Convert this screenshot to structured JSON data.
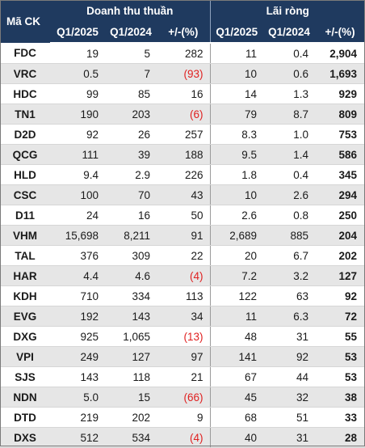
{
  "header": {
    "ticker": "Mã CK",
    "revenue_group": "Doanh thu thuần",
    "profit_group": "Lãi  ròng",
    "q1_2025": "Q1/2025",
    "q1_2024": "Q1/2024",
    "change": "+/-(%)"
  },
  "rows": [
    {
      "ticker": "FDC",
      "rev_2025": "19",
      "rev_2024": "5",
      "rev_chg": "282",
      "rev_neg": false,
      "np_2025": "11",
      "np_2024": "0.4",
      "np_chg": "2,904"
    },
    {
      "ticker": "VRC",
      "rev_2025": "0.5",
      "rev_2024": "7",
      "rev_chg": "(93)",
      "rev_neg": true,
      "np_2025": "10",
      "np_2024": "0.6",
      "np_chg": "1,693"
    },
    {
      "ticker": "HDC",
      "rev_2025": "99",
      "rev_2024": "85",
      "rev_chg": "16",
      "rev_neg": false,
      "np_2025": "14",
      "np_2024": "1.3",
      "np_chg": "929"
    },
    {
      "ticker": "TN1",
      "rev_2025": "190",
      "rev_2024": "203",
      "rev_chg": "(6)",
      "rev_neg": true,
      "np_2025": "79",
      "np_2024": "8.7",
      "np_chg": "809"
    },
    {
      "ticker": "D2D",
      "rev_2025": "92",
      "rev_2024": "26",
      "rev_chg": "257",
      "rev_neg": false,
      "np_2025": "8.3",
      "np_2024": "1.0",
      "np_chg": "753"
    },
    {
      "ticker": "QCG",
      "rev_2025": "111",
      "rev_2024": "39",
      "rev_chg": "188",
      "rev_neg": false,
      "np_2025": "9.5",
      "np_2024": "1.4",
      "np_chg": "586"
    },
    {
      "ticker": "HLD",
      "rev_2025": "9.4",
      "rev_2024": "2.9",
      "rev_chg": "226",
      "rev_neg": false,
      "np_2025": "1.8",
      "np_2024": "0.4",
      "np_chg": "345"
    },
    {
      "ticker": "CSC",
      "rev_2025": "100",
      "rev_2024": "70",
      "rev_chg": "43",
      "rev_neg": false,
      "np_2025": "10",
      "np_2024": "2.6",
      "np_chg": "294"
    },
    {
      "ticker": "D11",
      "rev_2025": "24",
      "rev_2024": "16",
      "rev_chg": "50",
      "rev_neg": false,
      "np_2025": "2.6",
      "np_2024": "0.8",
      "np_chg": "250"
    },
    {
      "ticker": "VHM",
      "rev_2025": "15,698",
      "rev_2024": "8,211",
      "rev_chg": "91",
      "rev_neg": false,
      "np_2025": "2,689",
      "np_2024": "885",
      "np_chg": "204"
    },
    {
      "ticker": "TAL",
      "rev_2025": "376",
      "rev_2024": "309",
      "rev_chg": "22",
      "rev_neg": false,
      "np_2025": "20",
      "np_2024": "6.7",
      "np_chg": "202"
    },
    {
      "ticker": "HAR",
      "rev_2025": "4.4",
      "rev_2024": "4.6",
      "rev_chg": "(4)",
      "rev_neg": true,
      "np_2025": "7.2",
      "np_2024": "3.2",
      "np_chg": "127"
    },
    {
      "ticker": "KDH",
      "rev_2025": "710",
      "rev_2024": "334",
      "rev_chg": "113",
      "rev_neg": false,
      "np_2025": "122",
      "np_2024": "63",
      "np_chg": "92"
    },
    {
      "ticker": "EVG",
      "rev_2025": "192",
      "rev_2024": "143",
      "rev_chg": "34",
      "rev_neg": false,
      "np_2025": "11",
      "np_2024": "6.3",
      "np_chg": "72"
    },
    {
      "ticker": "DXG",
      "rev_2025": "925",
      "rev_2024": "1,065",
      "rev_chg": "(13)",
      "rev_neg": true,
      "np_2025": "48",
      "np_2024": "31",
      "np_chg": "55"
    },
    {
      "ticker": "VPI",
      "rev_2025": "249",
      "rev_2024": "127",
      "rev_chg": "97",
      "rev_neg": false,
      "np_2025": "141",
      "np_2024": "92",
      "np_chg": "53"
    },
    {
      "ticker": "SJS",
      "rev_2025": "143",
      "rev_2024": "118",
      "rev_chg": "21",
      "rev_neg": false,
      "np_2025": "67",
      "np_2024": "44",
      "np_chg": "53"
    },
    {
      "ticker": "NDN",
      "rev_2025": "5.0",
      "rev_2024": "15",
      "rev_chg": "(66)",
      "rev_neg": true,
      "np_2025": "45",
      "np_2024": "32",
      "np_chg": "38"
    },
    {
      "ticker": "DTD",
      "rev_2025": "219",
      "rev_2024": "202",
      "rev_chg": "9",
      "rev_neg": false,
      "np_2025": "68",
      "np_2024": "51",
      "np_chg": "33"
    },
    {
      "ticker": "DXS",
      "rev_2025": "512",
      "rev_2024": "534",
      "rev_chg": "(4)",
      "rev_neg": true,
      "np_2025": "40",
      "np_2024": "31",
      "np_chg": "28"
    }
  ],
  "colors": {
    "header_bg": "#1f3a5f",
    "negative": "#e02020",
    "stripe": "#e6e6e6"
  }
}
